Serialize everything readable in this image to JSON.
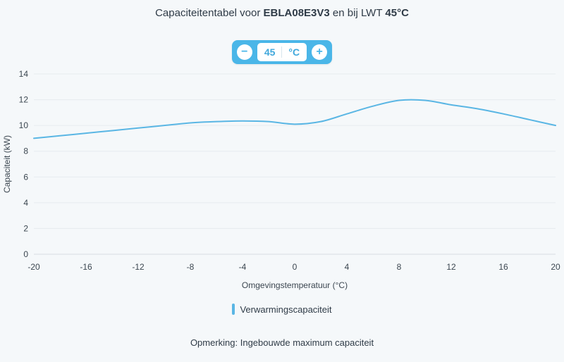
{
  "header": {
    "title_prefix": "Capaciteitentabel voor ",
    "model": "EBLA08E3V3",
    "title_middle": " en bij LWT ",
    "lwt": "45°C"
  },
  "stepper": {
    "minus_label": "−",
    "value": "45",
    "unit": "°C",
    "plus_label": "+"
  },
  "chart_data": {
    "type": "line",
    "title": "",
    "xlabel": "Omgevingstemperatuur (°C)",
    "ylabel": "Capaciteit (kW)",
    "xlim": [
      -20,
      20
    ],
    "ylim": [
      0,
      14
    ],
    "xticks": [
      -20,
      -16,
      -12,
      -8,
      -4,
      0,
      4,
      8,
      12,
      16,
      20
    ],
    "yticks": [
      0,
      2,
      4,
      6,
      8,
      10,
      12,
      14
    ],
    "grid": "horizontal",
    "legend_position": "bottom",
    "x": [
      -20,
      -18,
      -16,
      -14,
      -12,
      -10,
      -8,
      -6,
      -4,
      -2,
      0,
      2,
      4,
      6,
      8,
      10,
      12,
      14,
      16,
      18,
      20
    ],
    "series": [
      {
        "name": "Verwarmingscapaciteit",
        "color": "#5ab6e4",
        "values": [
          9.0,
          9.2,
          9.4,
          9.6,
          9.8,
          10.0,
          10.2,
          10.3,
          10.35,
          10.3,
          10.1,
          10.3,
          10.9,
          11.5,
          11.95,
          11.95,
          11.6,
          11.3,
          10.9,
          10.45,
          10.0
        ]
      }
    ]
  },
  "legend": {
    "label": "Verwarmingscapaciteit"
  },
  "footer": {
    "note": "Opmerking: Ingebouwde maximum capaciteit"
  }
}
